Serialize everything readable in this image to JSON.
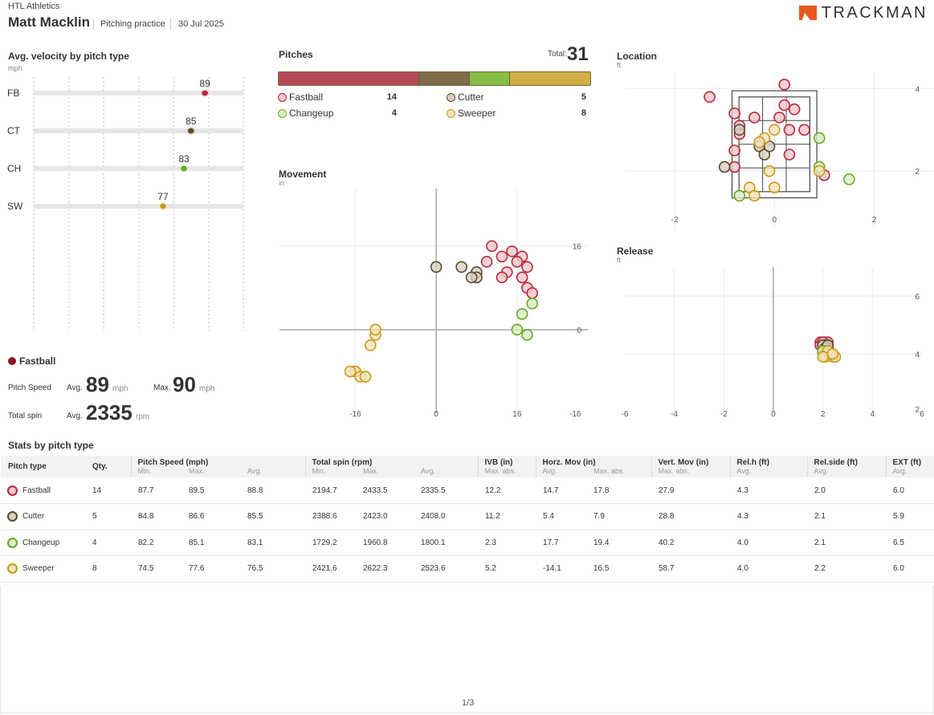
{
  "header": {
    "org": "HTL Athletics",
    "player": "Matt Macklin",
    "session": "Pitching practice",
    "date": "30 Jul 2025",
    "brand": "TRACKMAN",
    "brand_color": "#e8571e"
  },
  "colors": {
    "fastball": "#b8283b",
    "fastball_fill": "#f1c5cc",
    "cutter": "#5a4a2e",
    "cutter_fill": "#d7cfbf",
    "changeup": "#6aa825",
    "changeup_fill": "#d9eec4",
    "sweeper": "#c89a1c",
    "sweeper_fill": "#f3e4b9"
  },
  "velocity": {
    "title": "Avg. velocity by pitch type",
    "unit": "mph"
  },
  "pitches": {
    "title": "Pitches",
    "total_label": "Total:",
    "total": "31",
    "legend": [
      {
        "name": "Fastball",
        "count": "14"
      },
      {
        "name": "Cutter",
        "count": "5"
      },
      {
        "name": "Changeup",
        "count": "4"
      },
      {
        "name": "Sweeper",
        "count": "8"
      }
    ]
  },
  "movement": {
    "title": "Movement",
    "unit": "in"
  },
  "location": {
    "title": "Location",
    "unit": "ft"
  },
  "release": {
    "title": "Release",
    "unit": "ft"
  },
  "selected": {
    "name": "Fastball",
    "speed_label": "Pitch Speed",
    "avg_label": "Avg.",
    "max_label": "Max.",
    "avg_speed": "89",
    "max_speed": "90",
    "speed_unit": "mph",
    "spin_label": "Total spin",
    "avg_spin": "2335",
    "spin_unit": "rpm"
  },
  "stats": {
    "title": "Stats by pitch type",
    "headers": {
      "pitch_type": "Pitch type",
      "qty": "Qty.",
      "speed": "Pitch Speed (mph)",
      "spin": "Total spin (rpm)",
      "ivb": "IVB (in)",
      "horz": "Horz. Mov (in)",
      "vert": "Vert. Mov (in)",
      "relh": "Rel.h (ft)",
      "relside": "Rel.side (ft)",
      "ext": "EXT (ft)"
    },
    "subheaders": {
      "min": "Min.",
      "max": "Max.",
      "avg": "Avg.",
      "max_abs": "Max. abs."
    },
    "rows": [
      {
        "name": "Fastball",
        "qty": "14",
        "smin": "87.7",
        "smax": "89.5",
        "savg": "88.8",
        "pmin": "2194.7",
        "pmax": "2433.5",
        "pavg": "2335.5",
        "ivb": "12.2",
        "havg": "14.7",
        "hmax": "17.8",
        "vmax": "27.9",
        "relh": "4.3",
        "rels": "2.0",
        "ext": "6.0"
      },
      {
        "name": "Cutter",
        "qty": "5",
        "smin": "84.8",
        "smax": "86.6",
        "savg": "85.5",
        "pmin": "2388.6",
        "pmax": "2423.0",
        "pavg": "2408.0",
        "ivb": "11.2",
        "havg": "5.4",
        "hmax": "7.9",
        "vmax": "28.8",
        "relh": "4.3",
        "rels": "2.1",
        "ext": "5.9"
      },
      {
        "name": "Changeup",
        "qty": "4",
        "smin": "82.2",
        "smax": "85.1",
        "savg": "83.1",
        "pmin": "1729.2",
        "pmax": "1960.8",
        "pavg": "1800.1",
        "ivb": "2.3",
        "havg": "17.7",
        "hmax": "19.4",
        "vmax": "40.2",
        "relh": "4.0",
        "rels": "2.1",
        "ext": "6.5"
      },
      {
        "name": "Sweeper",
        "qty": "8",
        "smin": "74.5",
        "smax": "77.6",
        "savg": "76.5",
        "pmin": "2421.6",
        "pmax": "2622.3",
        "pavg": "2523.6",
        "ivb": "5.2",
        "havg": "-14.1",
        "hmax": "16.5",
        "vmax": "58.7",
        "relh": "4.0",
        "rels": "2.2",
        "ext": "6.0"
      }
    ]
  },
  "footer": {
    "page": "1/3"
  },
  "chart_data": [
    {
      "type": "bar",
      "title": "Avg. velocity by pitch type",
      "ylabel": "mph",
      "categories": [
        "FB",
        "CT",
        "CH",
        "SW"
      ],
      "values": [
        89,
        85,
        83,
        77
      ],
      "xlim": [
        40,
        100
      ]
    },
    {
      "type": "bar",
      "title": "Pitches",
      "categories": [
        "Fastball",
        "Cutter",
        "Changeup",
        "Sweeper"
      ],
      "values": [
        14,
        5,
        4,
        8
      ],
      "total": 31
    },
    {
      "type": "scatter",
      "title": "Movement",
      "unit": "in",
      "xlim": [
        -31,
        30
      ],
      "ylim": [
        -16,
        27
      ],
      "xticks": [
        "-16",
        "0",
        "16",
        "-16"
      ],
      "yticks": [
        "16",
        "0"
      ],
      "series": [
        {
          "name": "Fastball",
          "points": [
            [
              11,
              16
            ],
            [
              15,
              15
            ],
            [
              13,
              14
            ],
            [
              17,
              14
            ],
            [
              10,
              13
            ],
            [
              16,
              13
            ],
            [
              18,
              12
            ],
            [
              14,
              11
            ],
            [
              17,
              10
            ],
            [
              13,
              10
            ],
            [
              18,
              8
            ],
            [
              19,
              7
            ]
          ]
        },
        {
          "name": "Cutter",
          "points": [
            [
              0,
              12
            ],
            [
              5,
              12
            ],
            [
              8,
              11
            ],
            [
              8,
              10
            ],
            [
              7,
              10
            ]
          ]
        },
        {
          "name": "Changeup",
          "points": [
            [
              19,
              5
            ],
            [
              17,
              3
            ],
            [
              16,
              0
            ],
            [
              18,
              -1
            ]
          ]
        },
        {
          "name": "Sweeper",
          "points": [
            [
              -12,
              -1
            ],
            [
              -12,
              0
            ],
            [
              -13,
              -3
            ],
            [
              -16,
              -8
            ],
            [
              -16,
              -8
            ],
            [
              -17,
              -8
            ],
            [
              -15,
              -9
            ],
            [
              -14,
              -9
            ]
          ]
        }
      ]
    },
    {
      "type": "scatter",
      "title": "Location",
      "unit": "ft",
      "xticks": [
        "-2",
        "0",
        "2"
      ],
      "yticks": [
        "4",
        "2"
      ],
      "xlim": [
        -3,
        3.2
      ],
      "ylim": [
        0.6,
        4.4
      ],
      "series": [
        {
          "name": "Fastball",
          "points": [
            [
              0.2,
              4.1
            ],
            [
              -1.3,
              3.8
            ],
            [
              0.2,
              3.6
            ],
            [
              -0.8,
              3.4
            ],
            [
              0.4,
              3.5
            ],
            [
              -0.7,
              3.1
            ],
            [
              -0.4,
              3.3
            ],
            [
              0.1,
              3.3
            ],
            [
              0.3,
              3.0
            ],
            [
              -0.7,
              2.9
            ],
            [
              0.6,
              3.0
            ],
            [
              -0.8,
              2.5
            ],
            [
              0.3,
              2.4
            ],
            [
              -0.8,
              2.1
            ],
            [
              1.0,
              1.9
            ]
          ]
        },
        {
          "name": "Cutter",
          "points": [
            [
              -0.7,
              3.0
            ],
            [
              -0.3,
              2.6
            ],
            [
              -0.2,
              2.4
            ],
            [
              -0.1,
              2.6
            ],
            [
              -1.0,
              2.1
            ]
          ]
        },
        {
          "name": "Changeup",
          "points": [
            [
              0.9,
              2.8
            ],
            [
              1.5,
              1.8
            ],
            [
              0.9,
              2.1
            ],
            [
              -0.7,
              1.4
            ]
          ]
        },
        {
          "name": "Sweeper",
          "points": [
            [
              -0.2,
              2.8
            ],
            [
              -0.3,
              2.7
            ],
            [
              0.0,
              3.0
            ],
            [
              -0.1,
              2.0
            ],
            [
              0.9,
              2.0
            ],
            [
              -0.5,
              1.6
            ],
            [
              0.0,
              1.6
            ],
            [
              -0.4,
              1.4
            ]
          ]
        }
      ]
    },
    {
      "type": "scatter",
      "title": "Release",
      "unit": "ft",
      "xticks": [
        "-6",
        "-4",
        "-2",
        "0",
        "2",
        "4",
        "6"
      ],
      "yticks": [
        "6",
        "4",
        "2"
      ],
      "xlim": [
        -6,
        6
      ],
      "ylim": [
        2,
        7
      ],
      "series": [
        {
          "name": "Fastball",
          "points": [
            [
              2.0,
              4.4
            ],
            [
              2.1,
              4.3
            ],
            [
              2.0,
              4.2
            ],
            [
              2.1,
              4.4
            ],
            [
              2.2,
              4.3
            ],
            [
              1.9,
              4.4
            ],
            [
              2.0,
              4.3
            ],
            [
              2.1,
              4.2
            ],
            [
              2.2,
              4.4
            ],
            [
              2.0,
              4.3
            ],
            [
              1.9,
              4.3
            ],
            [
              2.1,
              4.3
            ],
            [
              2.0,
              4.4
            ],
            [
              2.2,
              4.2
            ]
          ]
        },
        {
          "name": "Cutter",
          "points": [
            [
              2.1,
              4.3
            ],
            [
              2.2,
              4.2
            ],
            [
              2.0,
              4.3
            ],
            [
              2.1,
              4.2
            ],
            [
              2.2,
              4.3
            ]
          ]
        },
        {
          "name": "Changeup",
          "points": [
            [
              2.0,
              4.0
            ],
            [
              2.1,
              4.1
            ],
            [
              2.2,
              4.0
            ],
            [
              2.0,
              4.1
            ]
          ]
        },
        {
          "name": "Sweeper",
          "points": [
            [
              2.2,
              4.0
            ],
            [
              2.4,
              3.9
            ],
            [
              2.5,
              3.9
            ],
            [
              2.1,
              3.9
            ],
            [
              2.3,
              4.0
            ],
            [
              2.2,
              4.1
            ],
            [
              2.0,
              3.9
            ],
            [
              2.4,
              4.0
            ]
          ]
        }
      ]
    }
  ]
}
